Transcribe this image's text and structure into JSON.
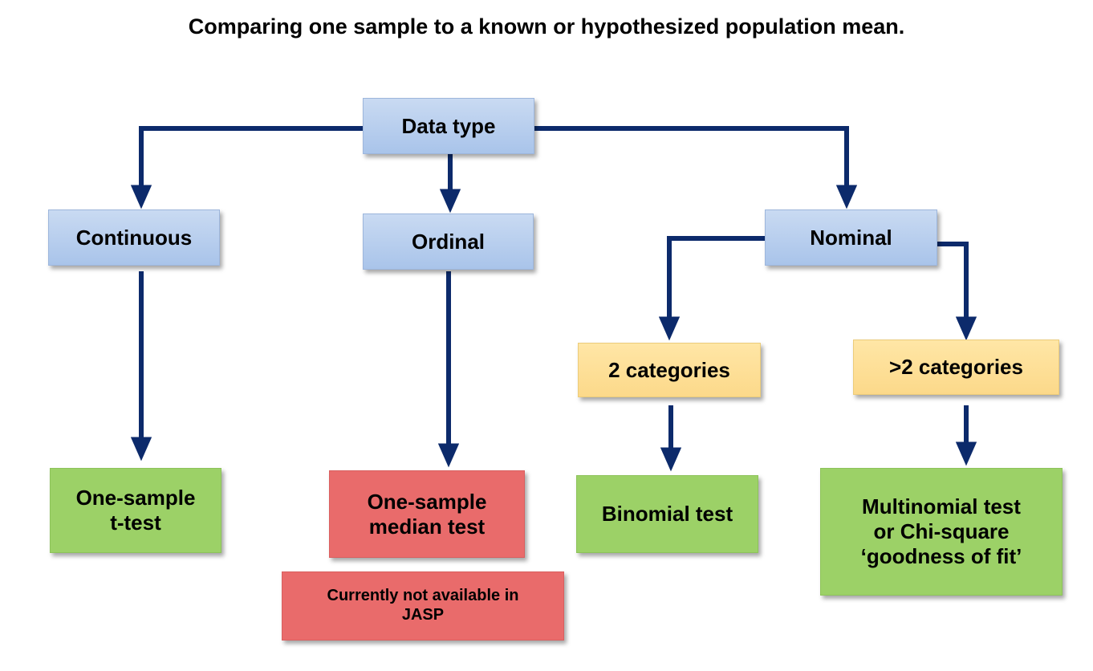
{
  "title": "Comparing one sample to a known or hypothesized population mean.",
  "colors": {
    "connector": "#0c2a6b",
    "data_level": "#a9c4ea",
    "category_level": "#fcd98a",
    "available_test": "#9cd167",
    "unavailable_test": "#e96b6b"
  },
  "nodes": {
    "data_type": "Data type",
    "continuous": "Continuous",
    "ordinal": "Ordinal",
    "nominal": "Nominal",
    "two_categories": "2 categories",
    "more_categories": ">2 categories",
    "one_sample_t_test": "One-sample\nt-test",
    "one_sample_median_test": "One-sample\nmedian test",
    "not_available_note": "Currently not available in\nJASP",
    "binomial_test": "Binomial test",
    "multinomial_test": "Multinomial test\nor Chi-square\n‘goodness of fit’"
  },
  "edges": [
    {
      "from": "Data type",
      "to": "Continuous"
    },
    {
      "from": "Data type",
      "to": "Ordinal"
    },
    {
      "from": "Data type",
      "to": "Nominal"
    },
    {
      "from": "Continuous",
      "to": "One-sample\nt-test"
    },
    {
      "from": "Ordinal",
      "to": "One-sample\nmedian test"
    },
    {
      "from": "Nominal",
      "to": "2 categories"
    },
    {
      "from": "Nominal",
      "to": ">2 categories"
    },
    {
      "from": "2 categories",
      "to": "Binomial test"
    },
    {
      "from": ">2 categories",
      "to": "Multinomial test\nor Chi-square\n‘goodness of fit’"
    }
  ]
}
